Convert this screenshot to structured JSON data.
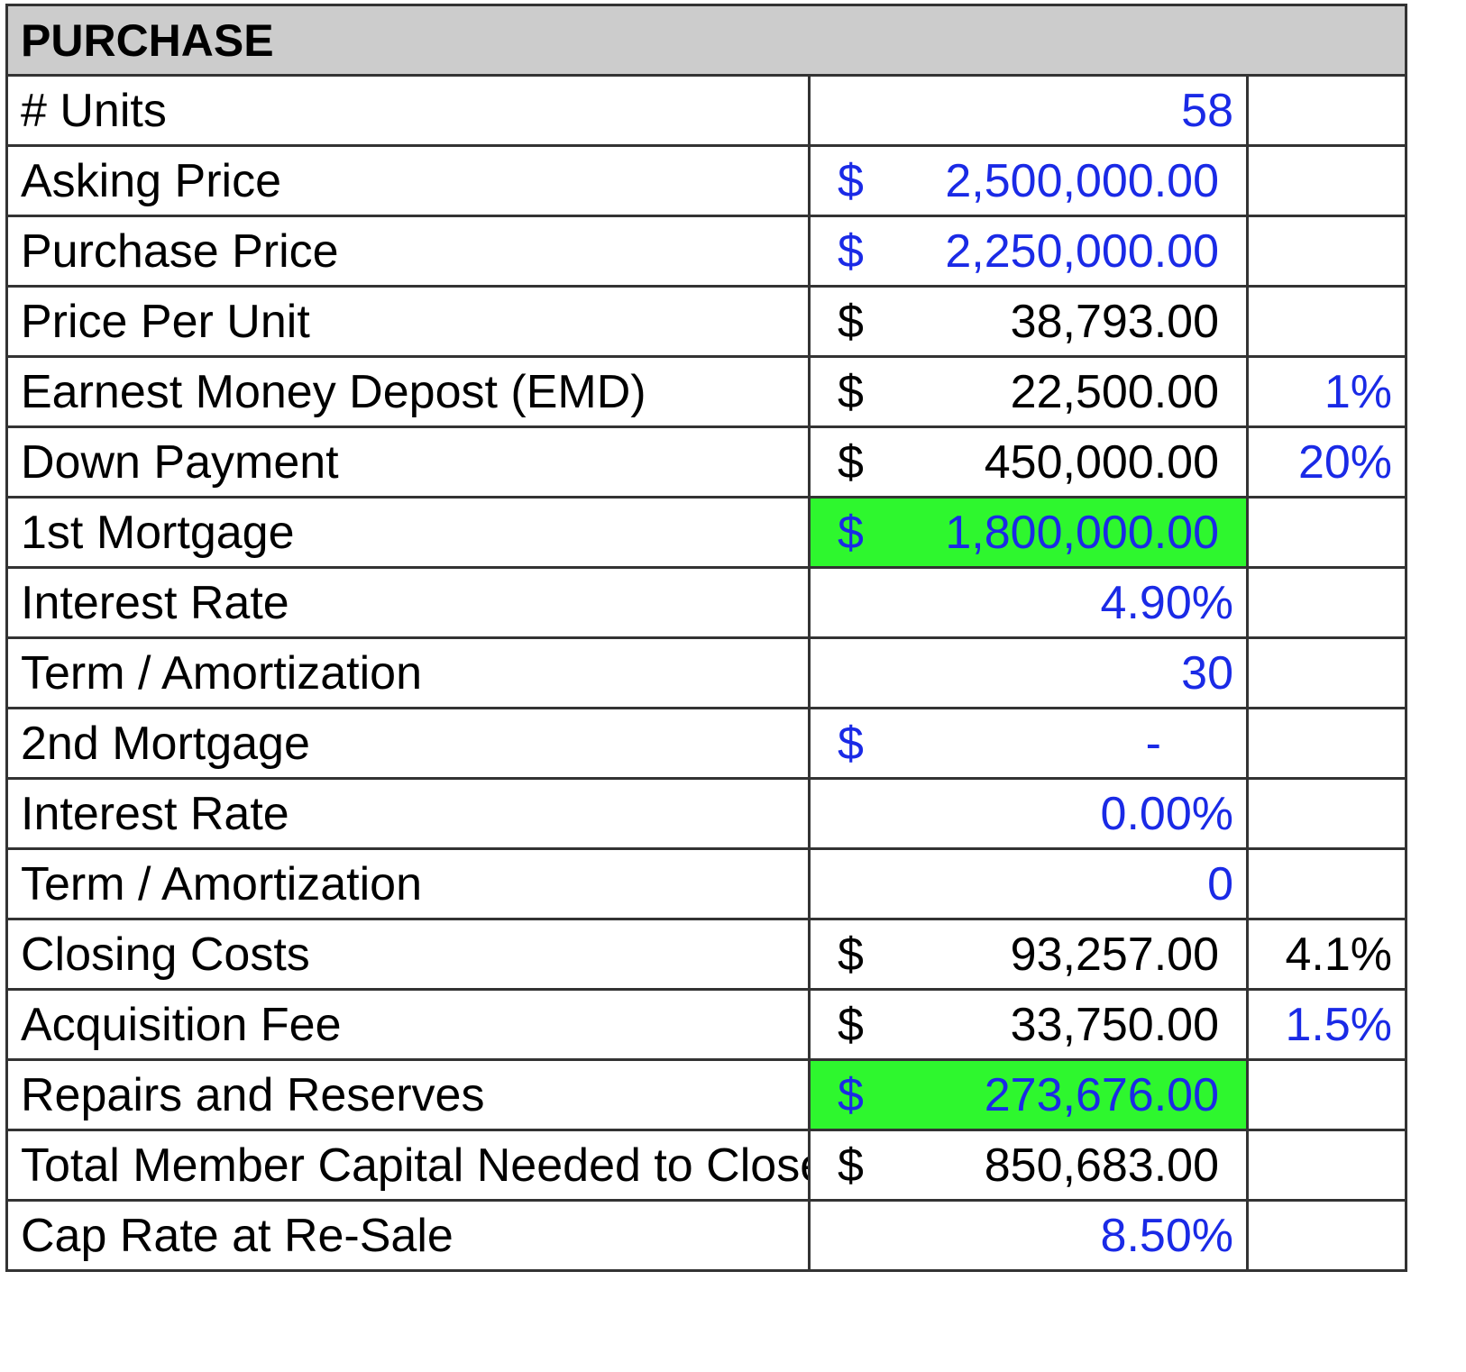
{
  "header": {
    "title": "PURCHASE"
  },
  "colors": {
    "input_blue": "#1a2ae6",
    "highlight_green": "#2ef72e",
    "header_gray": "#cccccc"
  },
  "rows": [
    {
      "label": "# Units",
      "currency": "",
      "value": "58",
      "pct": "",
      "value_blue": true,
      "pct_blue": false,
      "highlight": false
    },
    {
      "label": "Asking Price",
      "currency": "$",
      "value": "2,500,000.00",
      "pct": "",
      "value_blue": true,
      "pct_blue": false,
      "highlight": false
    },
    {
      "label": "Purchase Price",
      "currency": "$",
      "value": "2,250,000.00",
      "pct": "",
      "value_blue": true,
      "pct_blue": false,
      "highlight": false
    },
    {
      "label": "Price Per Unit",
      "currency": "$",
      "value": "38,793.00",
      "pct": "",
      "value_blue": false,
      "pct_blue": false,
      "highlight": false
    },
    {
      "label": "Earnest Money Depost (EMD)",
      "currency": "$",
      "value": "22,500.00",
      "pct": "1%",
      "value_blue": false,
      "pct_blue": true,
      "highlight": false
    },
    {
      "label": "Down Payment",
      "currency": "$",
      "value": "450,000.00",
      "pct": "20%",
      "value_blue": false,
      "pct_blue": true,
      "highlight": false
    },
    {
      "label": "1st Mortgage",
      "currency": "$",
      "value": "1,800,000.00",
      "pct": "",
      "value_blue": true,
      "pct_blue": false,
      "highlight": true
    },
    {
      "label": "Interest Rate",
      "currency": "",
      "value": "4.90%",
      "pct": "",
      "value_blue": true,
      "pct_blue": false,
      "highlight": false
    },
    {
      "label": "Term / Amortization",
      "currency": "",
      "value": "30",
      "pct": "",
      "value_blue": true,
      "pct_blue": false,
      "highlight": false
    },
    {
      "label": "2nd Mortgage",
      "currency": "$",
      "value": "-",
      "pct": "",
      "value_blue": true,
      "pct_blue": false,
      "highlight": false
    },
    {
      "label": "Interest Rate",
      "currency": "",
      "value": "0.00%",
      "pct": "",
      "value_blue": true,
      "pct_blue": false,
      "highlight": false
    },
    {
      "label": "Term / Amortization",
      "currency": "",
      "value": "0",
      "pct": "",
      "value_blue": true,
      "pct_blue": false,
      "highlight": false
    },
    {
      "label": "Closing Costs",
      "currency": "$",
      "value": "93,257.00",
      "pct": "4.1%",
      "value_blue": false,
      "pct_blue": false,
      "highlight": false
    },
    {
      "label": "Acquisition Fee",
      "currency": "$",
      "value": "33,750.00",
      "pct": "1.5%",
      "value_blue": false,
      "pct_blue": true,
      "highlight": false
    },
    {
      "label": "Repairs and Reserves",
      "currency": "$",
      "value": "273,676.00",
      "pct": "",
      "value_blue": true,
      "pct_blue": false,
      "highlight": true
    },
    {
      "label": "Total Member Capital Needed to Close",
      "currency": "$",
      "value": "850,683.00",
      "pct": "",
      "value_blue": false,
      "pct_blue": false,
      "highlight": false
    },
    {
      "label": "Cap Rate at Re-Sale",
      "currency": "",
      "value": "8.50%",
      "pct": "",
      "value_blue": true,
      "pct_blue": false,
      "highlight": false
    }
  ]
}
